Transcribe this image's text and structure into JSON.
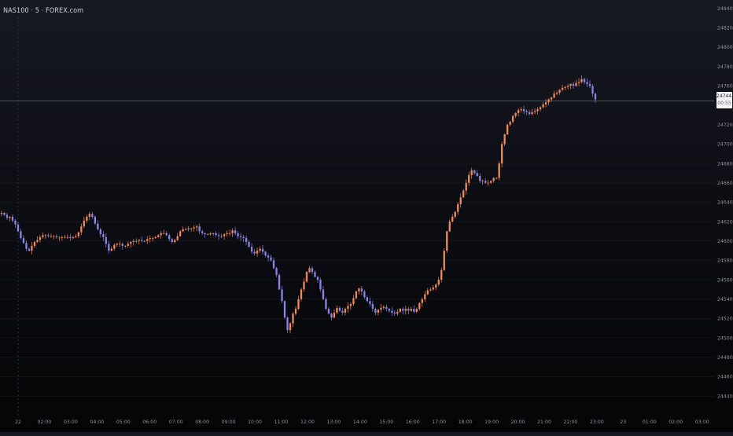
{
  "header": {
    "symbol_title": "NAS100 · 5 · FOREX.com"
  },
  "current_price": {
    "value": "24744,4",
    "countdown": "00:55"
  },
  "colors": {
    "up": "#ef8a5a",
    "down": "#8a86e8",
    "axis_text": "#8d909a",
    "grid": "#1c1e26",
    "price_line": "#5a6a6a"
  },
  "chart_data": {
    "type": "candlestick",
    "y_tick_labels": [
      "24840,0",
      "24820,0",
      "24800,0",
      "24780,0",
      "24760,0",
      "24740,0",
      "24720,0",
      "24700,0",
      "24680,0",
      "24660,0",
      "24640,0",
      "24620,0",
      "24600,0",
      "24580,0",
      "24560,0",
      "24540,0",
      "24520,0",
      "24500,0",
      "24480,0",
      "24460,0",
      "24440,0"
    ],
    "ylim": [
      24430,
      24845
    ],
    "x_tick_labels": [
      "22",
      "02:00",
      "03:00",
      "04:00",
      "05:00",
      "06:00",
      "07:00",
      "08:00",
      "09:00",
      "10:00",
      "11:00",
      "12:00",
      "13:00",
      "14:00",
      "15:00",
      "16:00",
      "17:00",
      "18:00",
      "19:00",
      "20:00",
      "21:00",
      "22:00",
      "23:00",
      "23",
      "01:00",
      "02:00",
      "03:00"
    ],
    "last_price": 24744.4,
    "close_series": [
      24629,
      24627,
      24624,
      24625,
      24621,
      24617,
      24610,
      24603,
      24598,
      24592,
      24590,
      24595,
      24599,
      24601,
      24604,
      24606,
      24606,
      24605,
      24605,
      24605,
      24604,
      24604,
      24604,
      24604,
      24604,
      24603,
      24604,
      24605,
      24609,
      24615,
      24621,
      24625,
      24628,
      24625,
      24618,
      24612,
      24607,
      24604,
      24597,
      24590,
      24592,
      24596,
      24597,
      24597,
      24595,
      24595,
      24597,
      24599,
      24600,
      24600,
      24601,
      24600,
      24600,
      24602,
      24603,
      24603,
      24604,
      24606,
      24608,
      24608,
      24606,
      24602,
      24599,
      24601,
      24605,
      24610,
      24612,
      24612,
      24613,
      24613,
      24614,
      24615,
      24610,
      24608,
      24607,
      24607,
      24608,
      24608,
      24606,
      24605,
      24605,
      24607,
      24608,
      24608,
      24611,
      24608,
      24605,
      24604,
      24603,
      24599,
      24594,
      24589,
      24587,
      24590,
      24592,
      24589,
      24585,
      24583,
      24580,
      24572,
      24565,
      24550,
      24538,
      24521,
      24508,
      24515,
      24525,
      24530,
      24540,
      24550,
      24558,
      24568,
      24572,
      24568,
      24563,
      24560,
      24550,
      24540,
      24530,
      24525,
      24521,
      24526,
      24531,
      24528,
      24526,
      24530,
      24533,
      24535,
      24541,
      24548,
      24551,
      24548,
      24542,
      24538,
      24535,
      24530,
      24526,
      24529,
      24531,
      24532,
      24530,
      24528,
      24526,
      24525,
      24527,
      24530,
      24528,
      24530,
      24528,
      24530,
      24527,
      24530,
      24536,
      24540,
      24545,
      24549,
      24550,
      24552,
      24555,
      24560,
      24570,
      24590,
      24610,
      24620,
      24625,
      24630,
      24638,
      24645,
      24652,
      24660,
      24668,
      24673,
      24670,
      24667,
      24662,
      24662,
      24660,
      24660,
      24662,
      24665,
      24665,
      24680,
      24700,
      24710,
      24720,
      24723,
      24729,
      24732,
      24735,
      24736,
      24734,
      24733,
      24731,
      24733,
      24734,
      24736,
      24738,
      24741,
      24743,
      24746,
      24748,
      24752,
      24753,
      24756,
      24758,
      24759,
      24760,
      24762,
      24760,
      24763,
      24764,
      24767,
      24764,
      24762,
      24760,
      24752,
      24746
    ]
  }
}
